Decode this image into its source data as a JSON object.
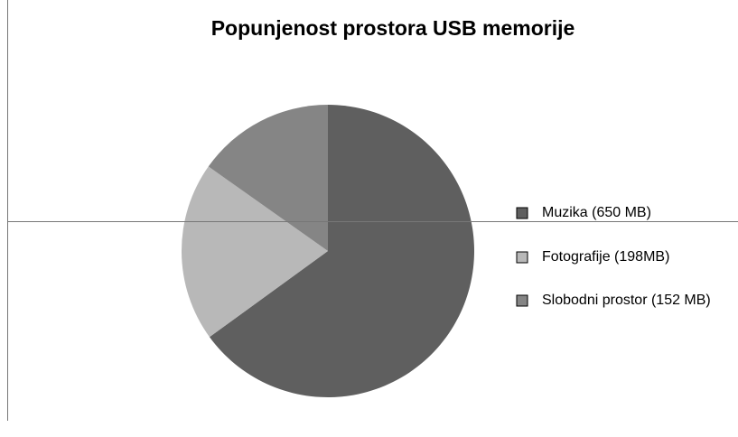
{
  "chart_data": {
    "type": "pie",
    "title": "Popunjenost prostora USB memorije",
    "categories": [
      "Muzika (650 MB)",
      "Fotografije (198MB)",
      "Slobodni prostor (152 MB)"
    ],
    "values": [
      650,
      198,
      152
    ],
    "colors": [
      "#5f5f5f",
      "#b8b8b8",
      "#858585"
    ]
  }
}
